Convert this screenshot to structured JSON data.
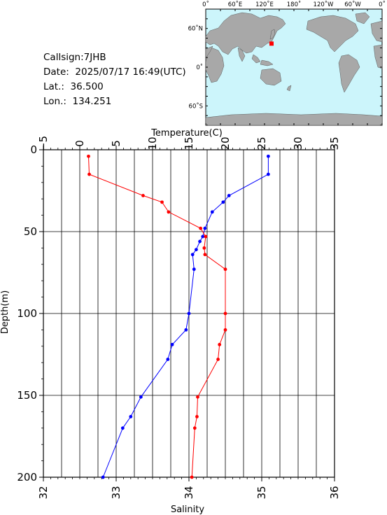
{
  "info": {
    "callsign": "Callsign:7JHB",
    "date": "Date:  2025/07/17 16:49(UTC)",
    "lat": "Lat.:  36.500",
    "lon": "Lon.:  134.251"
  },
  "map": {
    "top_labels": [
      "0˚",
      "60˚E",
      "120˚E",
      "180˚",
      "120˚W",
      "60˚W",
      "0˚"
    ],
    "left_labels": [
      "60˚N",
      "0˚",
      "60˚S"
    ],
    "station": {
      "lon": 134.251,
      "lat": 36.5
    },
    "colors": {
      "ocean": "#ccf5fb",
      "land": "#a8a8a8",
      "marker": "#ff0000"
    }
  },
  "chart_data": {
    "type": "line",
    "temperature_axis": {
      "label": "Temperature(C)",
      "range": [
        -5,
        35
      ],
      "ticks": [
        "−5",
        "0",
        "5",
        "10",
        "15",
        "20",
        "25",
        "30",
        "35"
      ]
    },
    "salinity_axis": {
      "label": "Salinity",
      "range": [
        32,
        36
      ],
      "ticks": [
        "32",
        "33",
        "34",
        "35",
        "36"
      ]
    },
    "depth_axis": {
      "label": "Depth(m)",
      "range": [
        0,
        200
      ],
      "ticks": [
        "0",
        "50",
        "100",
        "150",
        "200"
      ]
    },
    "grid": true,
    "series": [
      {
        "variable": "temperature",
        "color": "#ff0000",
        "points": [
          {
            "value": 25.9,
            "depth": 4
          },
          {
            "value": 25.9,
            "depth": 15
          },
          {
            "value": 20.5,
            "depth": 28
          },
          {
            "value": 19.7,
            "depth": 32
          },
          {
            "value": 18.2,
            "depth": 38
          },
          {
            "value": 17.2,
            "depth": 48
          },
          {
            "value": 16.9,
            "depth": 53
          },
          {
            "value": 16.5,
            "depth": 56
          },
          {
            "value": 16.0,
            "depth": 61
          },
          {
            "value": 15.5,
            "depth": 64
          },
          {
            "value": 15.7,
            "depth": 73
          },
          {
            "value": 15.0,
            "depth": 100
          },
          {
            "value": 14.6,
            "depth": 110
          },
          {
            "value": 12.7,
            "depth": 119
          },
          {
            "value": 12.1,
            "depth": 128
          },
          {
            "value": 8.4,
            "depth": 151
          },
          {
            "value": 7.0,
            "depth": 163
          },
          {
            "value": 5.9,
            "depth": 170
          },
          {
            "value": 3.2,
            "depth": 200
          }
        ]
      },
      {
        "variable": "salinity",
        "color": "#ff0000",
        "points": [
          {
            "value": 32.62,
            "depth": 4
          },
          {
            "value": 32.63,
            "depth": 15
          },
          {
            "value": 33.37,
            "depth": 28
          },
          {
            "value": 33.63,
            "depth": 32
          },
          {
            "value": 33.72,
            "depth": 38
          },
          {
            "value": 34.16,
            "depth": 48
          },
          {
            "value": 34.23,
            "depth": 53
          },
          {
            "value": 34.21,
            "depth": 60
          },
          {
            "value": 34.22,
            "depth": 64
          },
          {
            "value": 34.5,
            "depth": 73
          },
          {
            "value": 34.5,
            "depth": 100
          },
          {
            "value": 34.5,
            "depth": 110
          },
          {
            "value": 34.42,
            "depth": 119
          },
          {
            "value": 34.4,
            "depth": 128
          },
          {
            "value": 34.12,
            "depth": 151
          },
          {
            "value": 34.11,
            "depth": 163
          },
          {
            "value": 34.08,
            "depth": 170
          },
          {
            "value": 34.04,
            "depth": 200
          }
        ]
      }
    ]
  }
}
